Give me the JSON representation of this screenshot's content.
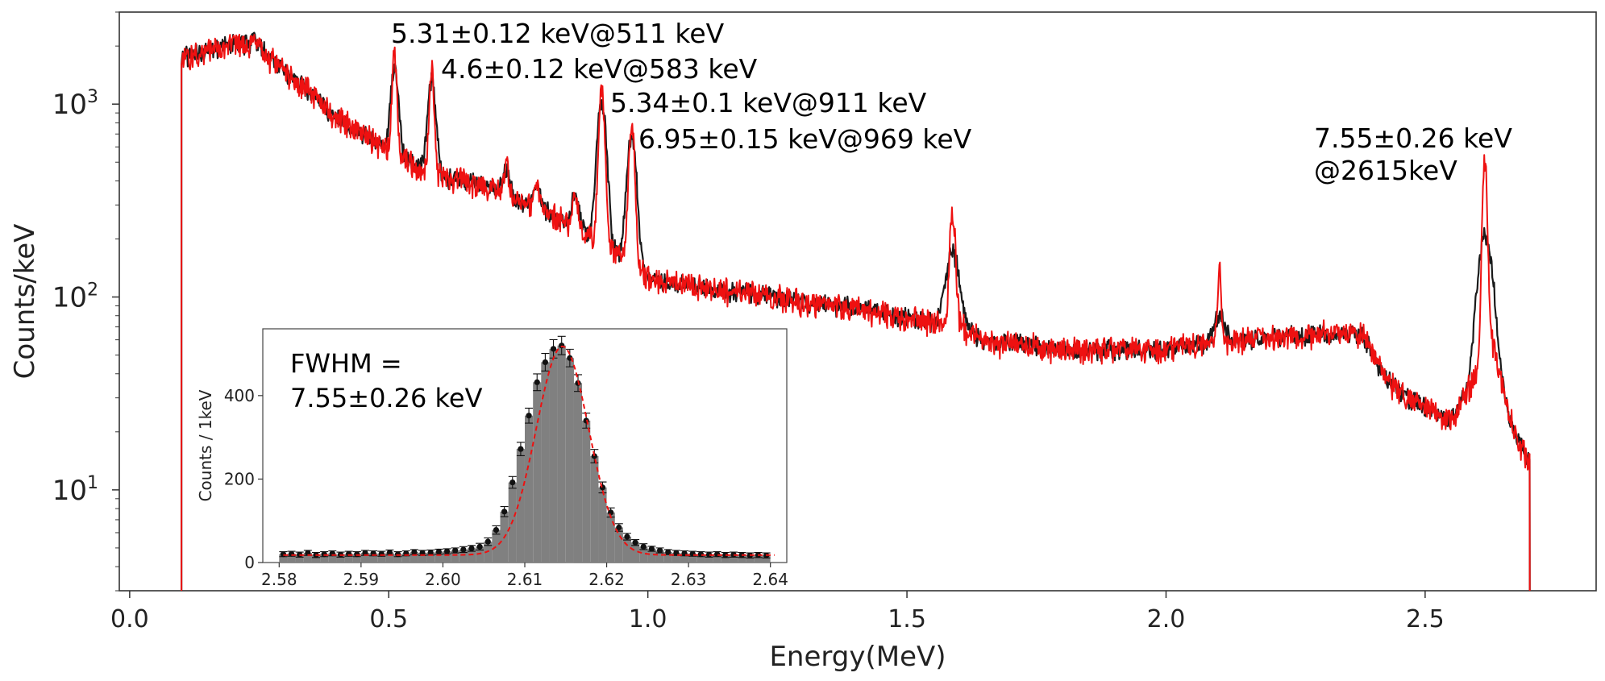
{
  "chart_data": [
    {
      "type": "line",
      "panel": "main",
      "xlabel": "Energy(MeV)",
      "ylabel": "Counts/keV",
      "xlim": [
        -0.02,
        2.83
      ],
      "ylim": [
        3.0,
        3000
      ],
      "yscale": "log",
      "x_ticks": [
        0.0,
        0.5,
        1.0,
        1.5,
        2.0,
        2.5
      ],
      "x_tick_labels": [
        "0.0",
        "0.5",
        "1.0",
        "1.5",
        "2.0",
        "2.5"
      ],
      "y_ticks": [
        10,
        100,
        1000
      ],
      "y_tick_labels": [
        {
          "base": "10",
          "exp": "1"
        },
        {
          "base": "10",
          "exp": "2"
        },
        {
          "base": "10",
          "exp": "3"
        }
      ],
      "series": [
        {
          "color": "#1a1a1a",
          "continuum": [
            [
              0.1,
              1750
            ],
            [
              0.15,
              1900
            ],
            [
              0.2,
              2050
            ],
            [
              0.25,
              2000
            ],
            [
              0.3,
              1450
            ],
            [
              0.35,
              1150
            ],
            [
              0.4,
              850
            ],
            [
              0.45,
              700
            ],
            [
              0.5,
              580
            ],
            [
              0.55,
              480
            ],
            [
              0.6,
              420
            ],
            [
              0.7,
              370
            ],
            [
              0.8,
              280
            ],
            [
              0.9,
              200
            ],
            [
              0.96,
              160
            ],
            [
              1.0,
              125
            ],
            [
              1.1,
              112
            ],
            [
              1.2,
              104
            ],
            [
              1.3,
              94
            ],
            [
              1.4,
              88
            ],
            [
              1.5,
              78
            ],
            [
              1.58,
              72
            ],
            [
              1.6,
              72
            ],
            [
              1.65,
              58
            ],
            [
              1.7,
              58
            ],
            [
              1.8,
              53
            ],
            [
              1.9,
              53
            ],
            [
              2.0,
              54
            ],
            [
              2.1,
              58
            ],
            [
              2.2,
              62
            ],
            [
              2.3,
              65
            ],
            [
              2.38,
              64
            ],
            [
              2.42,
              40
            ],
            [
              2.45,
              32
            ],
            [
              2.5,
              27
            ],
            [
              2.55,
              23
            ],
            [
              2.6,
              40
            ],
            [
              2.63,
              60
            ],
            [
              2.66,
              25
            ],
            [
              2.68,
              18
            ],
            [
              2.7,
              14
            ]
          ],
          "peaks": [
            [
              0.239,
              300,
              0.004
            ],
            [
              0.295,
              90,
              0.006
            ],
            [
              0.511,
              950,
              0.007
            ],
            [
              0.583,
              900,
              0.007
            ],
            [
              0.727,
              120,
              0.006
            ],
            [
              0.785,
              90,
              0.008
            ],
            [
              0.86,
              110,
              0.007
            ],
            [
              0.911,
              820,
              0.008
            ],
            [
              0.969,
              540,
              0.008
            ],
            [
              1.588,
              95,
              0.012
            ],
            [
              2.103,
              22,
              0.01
            ],
            [
              2.615,
              160,
              0.012
            ]
          ],
          "noise": 0.09
        },
        {
          "color": "#ee1111",
          "continuum": [
            [
              0.1,
              1750
            ],
            [
              0.15,
              1900
            ],
            [
              0.2,
              2050
            ],
            [
              0.25,
              2000
            ],
            [
              0.3,
              1450
            ],
            [
              0.35,
              1150
            ],
            [
              0.4,
              850
            ],
            [
              0.45,
              700
            ],
            [
              0.5,
              580
            ],
            [
              0.55,
              480
            ],
            [
              0.6,
              420
            ],
            [
              0.7,
              370
            ],
            [
              0.8,
              280
            ],
            [
              0.9,
              200
            ],
            [
              0.96,
              160
            ],
            [
              1.0,
              125
            ],
            [
              1.1,
              112
            ],
            [
              1.2,
              104
            ],
            [
              1.3,
              94
            ],
            [
              1.4,
              88
            ],
            [
              1.5,
              78
            ],
            [
              1.58,
              72
            ],
            [
              1.6,
              72
            ],
            [
              1.65,
              58
            ],
            [
              1.7,
              58
            ],
            [
              1.8,
              53
            ],
            [
              1.9,
              53
            ],
            [
              2.0,
              54
            ],
            [
              2.1,
              58
            ],
            [
              2.2,
              62
            ],
            [
              2.3,
              65
            ],
            [
              2.38,
              64
            ],
            [
              2.42,
              40
            ],
            [
              2.45,
              32
            ],
            [
              2.5,
              27
            ],
            [
              2.55,
              23
            ],
            [
              2.6,
              40
            ],
            [
              2.63,
              60
            ],
            [
              2.66,
              25
            ],
            [
              2.68,
              18
            ],
            [
              2.7,
              14
            ]
          ],
          "peaks": [
            [
              0.239,
              300,
              0.003
            ],
            [
              0.295,
              90,
              0.004
            ],
            [
              0.511,
              1250,
              0.004
            ],
            [
              0.583,
              1100,
              0.004
            ],
            [
              0.727,
              140,
              0.004
            ],
            [
              0.785,
              100,
              0.005
            ],
            [
              0.86,
              120,
              0.004
            ],
            [
              0.911,
              1000,
              0.005
            ],
            [
              0.969,
              650,
              0.005
            ],
            [
              1.588,
              200,
              0.005
            ],
            [
              2.103,
              90,
              0.003
            ],
            [
              2.615,
              480,
              0.004
            ]
          ],
          "noise": 0.12
        }
      ],
      "annotations": [
        {
          "lines": [
            "5.31±0.12 keV@511 keV"
          ],
          "x": 0.511,
          "y": 2200
        },
        {
          "lines": [
            "4.6±0.12 keV@583 keV"
          ],
          "x": 0.583,
          "y": 1430
        },
        {
          "lines": [
            "5.34±0.1 keV@911 keV"
          ],
          "x": 0.911,
          "y": 1010
        },
        {
          "lines": [
            "6.95±0.15 keV@969 keV"
          ],
          "x": 0.969,
          "y": 700
        },
        {
          "lines": [
            "7.55±0.26 keV",
            "@2615keV"
          ],
          "x": 2.32,
          "y": 700
        }
      ]
    },
    {
      "type": "bar",
      "panel": "inset",
      "ylabel": "Counts / 1keV",
      "xlim": [
        2.578,
        2.642
      ],
      "ylim": [
        0,
        560
      ],
      "x_ticks": [
        2.58,
        2.59,
        2.6,
        2.61,
        2.62,
        2.63,
        2.64
      ],
      "x_tick_labels": [
        "2.58",
        "2.59",
        "2.60",
        "2.61",
        "2.62",
        "2.63",
        "2.64"
      ],
      "y_ticks": [
        0,
        200,
        400
      ],
      "y_tick_labels": [
        "0",
        "200",
        "400"
      ],
      "bin_width": 0.001,
      "bins_x": [
        2.5805,
        2.5815,
        2.5825,
        2.5835,
        2.5845,
        2.5855,
        2.5865,
        2.5875,
        2.5885,
        2.5895,
        2.5905,
        2.5915,
        2.5925,
        2.5935,
        2.5945,
        2.5955,
        2.5965,
        2.5975,
        2.5985,
        2.5995,
        2.6005,
        2.6015,
        2.6025,
        2.6035,
        2.6045,
        2.6055,
        2.6065,
        2.6075,
        2.6085,
        2.6095,
        2.6105,
        2.6115,
        2.6125,
        2.6135,
        2.6145,
        2.6155,
        2.6165,
        2.6175,
        2.6185,
        2.6195,
        2.6205,
        2.6215,
        2.6225,
        2.6235,
        2.6245,
        2.6255,
        2.6265,
        2.6275,
        2.6285,
        2.6295,
        2.6305,
        2.6315,
        2.6325,
        2.6335,
        2.6345,
        2.6355,
        2.6365,
        2.6375,
        2.6385,
        2.6395
      ],
      "counts": [
        20,
        21,
        19,
        23,
        18,
        20,
        22,
        19,
        21,
        20,
        23,
        22,
        21,
        24,
        20,
        22,
        25,
        23,
        24,
        26,
        27,
        29,
        31,
        34,
        38,
        50,
        78,
        122,
        192,
        272,
        352,
        432,
        480,
        512,
        520,
        490,
        430,
        340,
        255,
        180,
        120,
        84,
        62,
        48,
        38,
        33,
        29,
        25,
        23,
        22,
        21,
        20,
        19,
        20,
        18,
        19,
        18,
        17,
        18,
        17
      ],
      "errors": [
        6,
        6,
        6,
        6,
        6,
        6,
        6,
        6,
        6,
        6,
        6,
        6,
        6,
        6,
        6,
        6,
        6,
        6,
        6,
        6,
        6,
        6,
        7,
        7,
        8,
        9,
        10,
        12,
        14,
        16,
        18,
        20,
        21,
        22,
        22,
        21,
        20,
        18,
        16,
        13,
        11,
        9,
        8,
        7,
        7,
        6,
        6,
        6,
        6,
        6,
        6,
        6,
        6,
        6,
        6,
        6,
        6,
        6,
        6,
        6
      ],
      "fit": {
        "mean": 2.6146,
        "sigma": 0.0032,
        "amplitude": 500,
        "baseline": 18
      },
      "label_lines": [
        "FWHM =",
        "7.55±0.26 keV"
      ]
    }
  ]
}
